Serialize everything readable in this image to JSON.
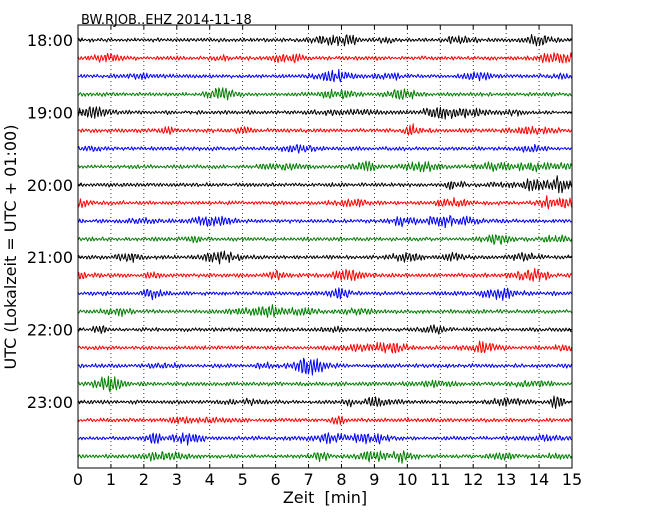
{
  "chart_data": {
    "type": "line",
    "title": "BW.RJOB..EHZ 2014-11-18",
    "xlabel": "Zeit  [min]",
    "ylabel": "UTC (Lokalzeit = UTC + 01:00)",
    "xlim": [
      0,
      15
    ],
    "x_ticks": [
      "0",
      "1",
      "2",
      "3",
      "4",
      "5",
      "6",
      "7",
      "8",
      "9",
      "10",
      "11",
      "12",
      "13",
      "14",
      "15"
    ],
    "y_ticks": [
      "18:00",
      "19:00",
      "20:00",
      "21:00",
      "22:00",
      "23:00"
    ],
    "grid": "vertical dotted",
    "trace_colors": [
      "#000000",
      "#ff0000",
      "#0000ff",
      "#008000"
    ],
    "traces_per_hour": 4,
    "minutes_per_trace": 15,
    "start_time": "18:00",
    "trace_count": 24
  }
}
